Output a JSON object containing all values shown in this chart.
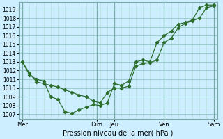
{
  "xlabel": "Pression niveau de la mer( hPa )",
  "ylim": [
    1006.5,
    1019.8
  ],
  "yticks": [
    1007,
    1008,
    1009,
    1010,
    1011,
    1012,
    1013,
    1014,
    1015,
    1016,
    1017,
    1018,
    1019
  ],
  "day_labels": [
    "Mer",
    "Dim",
    "Jeu",
    "Ven",
    "Sam"
  ],
  "day_positions": [
    0.0,
    10.5,
    13.0,
    20.0,
    27.0
  ],
  "xlim": [
    -0.5,
    27.5
  ],
  "bg_color": "#cceeff",
  "grid_color_major": "#99cccc",
  "grid_color_minor": "#bbdddd",
  "line_color": "#2d6e2d",
  "line1_x": [
    0,
    1,
    2,
    3,
    4,
    5,
    6,
    7,
    8,
    9,
    10,
    11,
    12,
    13,
    14,
    15,
    16,
    17,
    18,
    19,
    20,
    21,
    22,
    23,
    24,
    25,
    26,
    27
  ],
  "line1_y": [
    1013.0,
    1011.7,
    1010.7,
    1010.5,
    1010.3,
    1010.1,
    1009.8,
    1009.5,
    1009.2,
    1009.0,
    1008.5,
    1008.3,
    1009.5,
    1010.0,
    1010.0,
    1010.2,
    1012.5,
    1012.8,
    1012.9,
    1013.2,
    1015.2,
    1015.7,
    1016.9,
    1017.4,
    1017.7,
    1018.0,
    1019.2,
    1019.4
  ],
  "line2_x": [
    0,
    1,
    2,
    3,
    4,
    5,
    6,
    7,
    8,
    9,
    10,
    11,
    12,
    13,
    14,
    15,
    16,
    17,
    18,
    19,
    20,
    21,
    22,
    23,
    24,
    25,
    26,
    27
  ],
  "line2_y": [
    1013.0,
    1011.5,
    1011.0,
    1010.8,
    1009.0,
    1008.7,
    1007.3,
    1007.1,
    1007.5,
    1007.8,
    1008.1,
    1008.0,
    1008.3,
    1010.5,
    1010.3,
    1010.8,
    1013.0,
    1013.2,
    1013.0,
    1015.2,
    1016.0,
    1016.5,
    1017.3,
    1017.5,
    1017.8,
    1019.2,
    1019.5,
    1019.5
  ]
}
